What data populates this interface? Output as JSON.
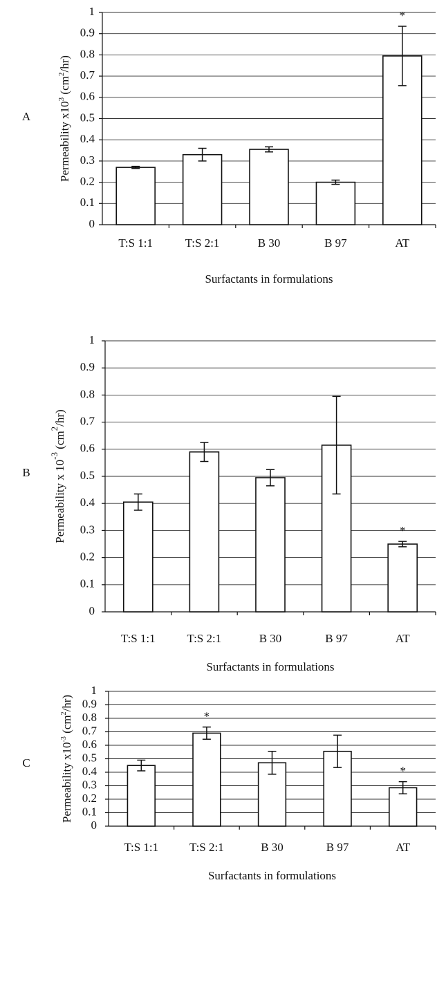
{
  "chart_data": [
    {
      "type": "bar",
      "panel": "A",
      "ylabel": [
        {
          "text": "Permeability x10"
        },
        {
          "text": "3",
          "sup": true
        },
        {
          "text": " (cm"
        },
        {
          "text": "2",
          "sup": true
        },
        {
          "text": "/hr)"
        }
      ],
      "xlabel": "Surfactants in formulations",
      "categories": [
        "T:S 1:1",
        "T:S 2:1",
        "B 30",
        "B 97",
        "AT"
      ],
      "values": [
        0.27,
        0.33,
        0.355,
        0.2,
        0.795
      ],
      "errors": [
        0.005,
        0.03,
        0.012,
        0.01,
        0.14
      ],
      "value_annotations": [
        null,
        null,
        null,
        null,
        "*"
      ],
      "color": "#ffffff",
      "ylim": [
        0,
        1
      ],
      "yticks": [
        0,
        0.1,
        0.2,
        0.3,
        0.4,
        0.5,
        0.6,
        0.7,
        0.8,
        0.9,
        1
      ],
      "grid": true
    },
    {
      "type": "bar",
      "panel": "B",
      "ylabel": [
        {
          "text": "Permeability x 10"
        },
        {
          "text": "-3",
          "sup": true
        },
        {
          "text": " (cm"
        },
        {
          "text": "2",
          "sup": true
        },
        {
          "text": "/hr)"
        }
      ],
      "xlabel": "Surfactants in formulations",
      "categories": [
        "T:S 1:1",
        "T:S 2:1",
        "B 30",
        "B 97",
        "AT"
      ],
      "values": [
        0.405,
        0.59,
        0.495,
        0.615,
        0.25
      ],
      "errors": [
        0.03,
        0.035,
        0.03,
        0.18,
        0.01
      ],
      "value_annotations": [
        null,
        null,
        null,
        null,
        "*"
      ],
      "color": "#ffffff",
      "ylim": [
        0,
        1
      ],
      "yticks": [
        0,
        0.1,
        0.2,
        0.3,
        0.4,
        0.5,
        0.6,
        0.7,
        0.8,
        0.9,
        1
      ],
      "grid": true
    },
    {
      "type": "bar",
      "panel": "C",
      "ylabel": [
        {
          "text": "Permeability x10"
        },
        {
          "text": "-3",
          "sup": true
        },
        {
          "text": " (cm"
        },
        {
          "text": "2",
          "sup": true
        },
        {
          "text": "/hr)"
        }
      ],
      "xlabel": "Surfactants in formulations",
      "categories": [
        "T:S 1:1",
        "T:S 2:1",
        "B 30",
        "B 97",
        "AT"
      ],
      "values": [
        0.45,
        0.69,
        0.47,
        0.555,
        0.285
      ],
      "errors": [
        0.04,
        0.045,
        0.085,
        0.12,
        0.045
      ],
      "value_annotations": [
        null,
        "*",
        null,
        null,
        "*"
      ],
      "color": "#ffffff",
      "ylim": [
        0,
        1
      ],
      "yticks": [
        0,
        0.1,
        0.2,
        0.3,
        0.4,
        0.5,
        0.6,
        0.7,
        0.8,
        0.9,
        1
      ],
      "grid": true
    }
  ]
}
